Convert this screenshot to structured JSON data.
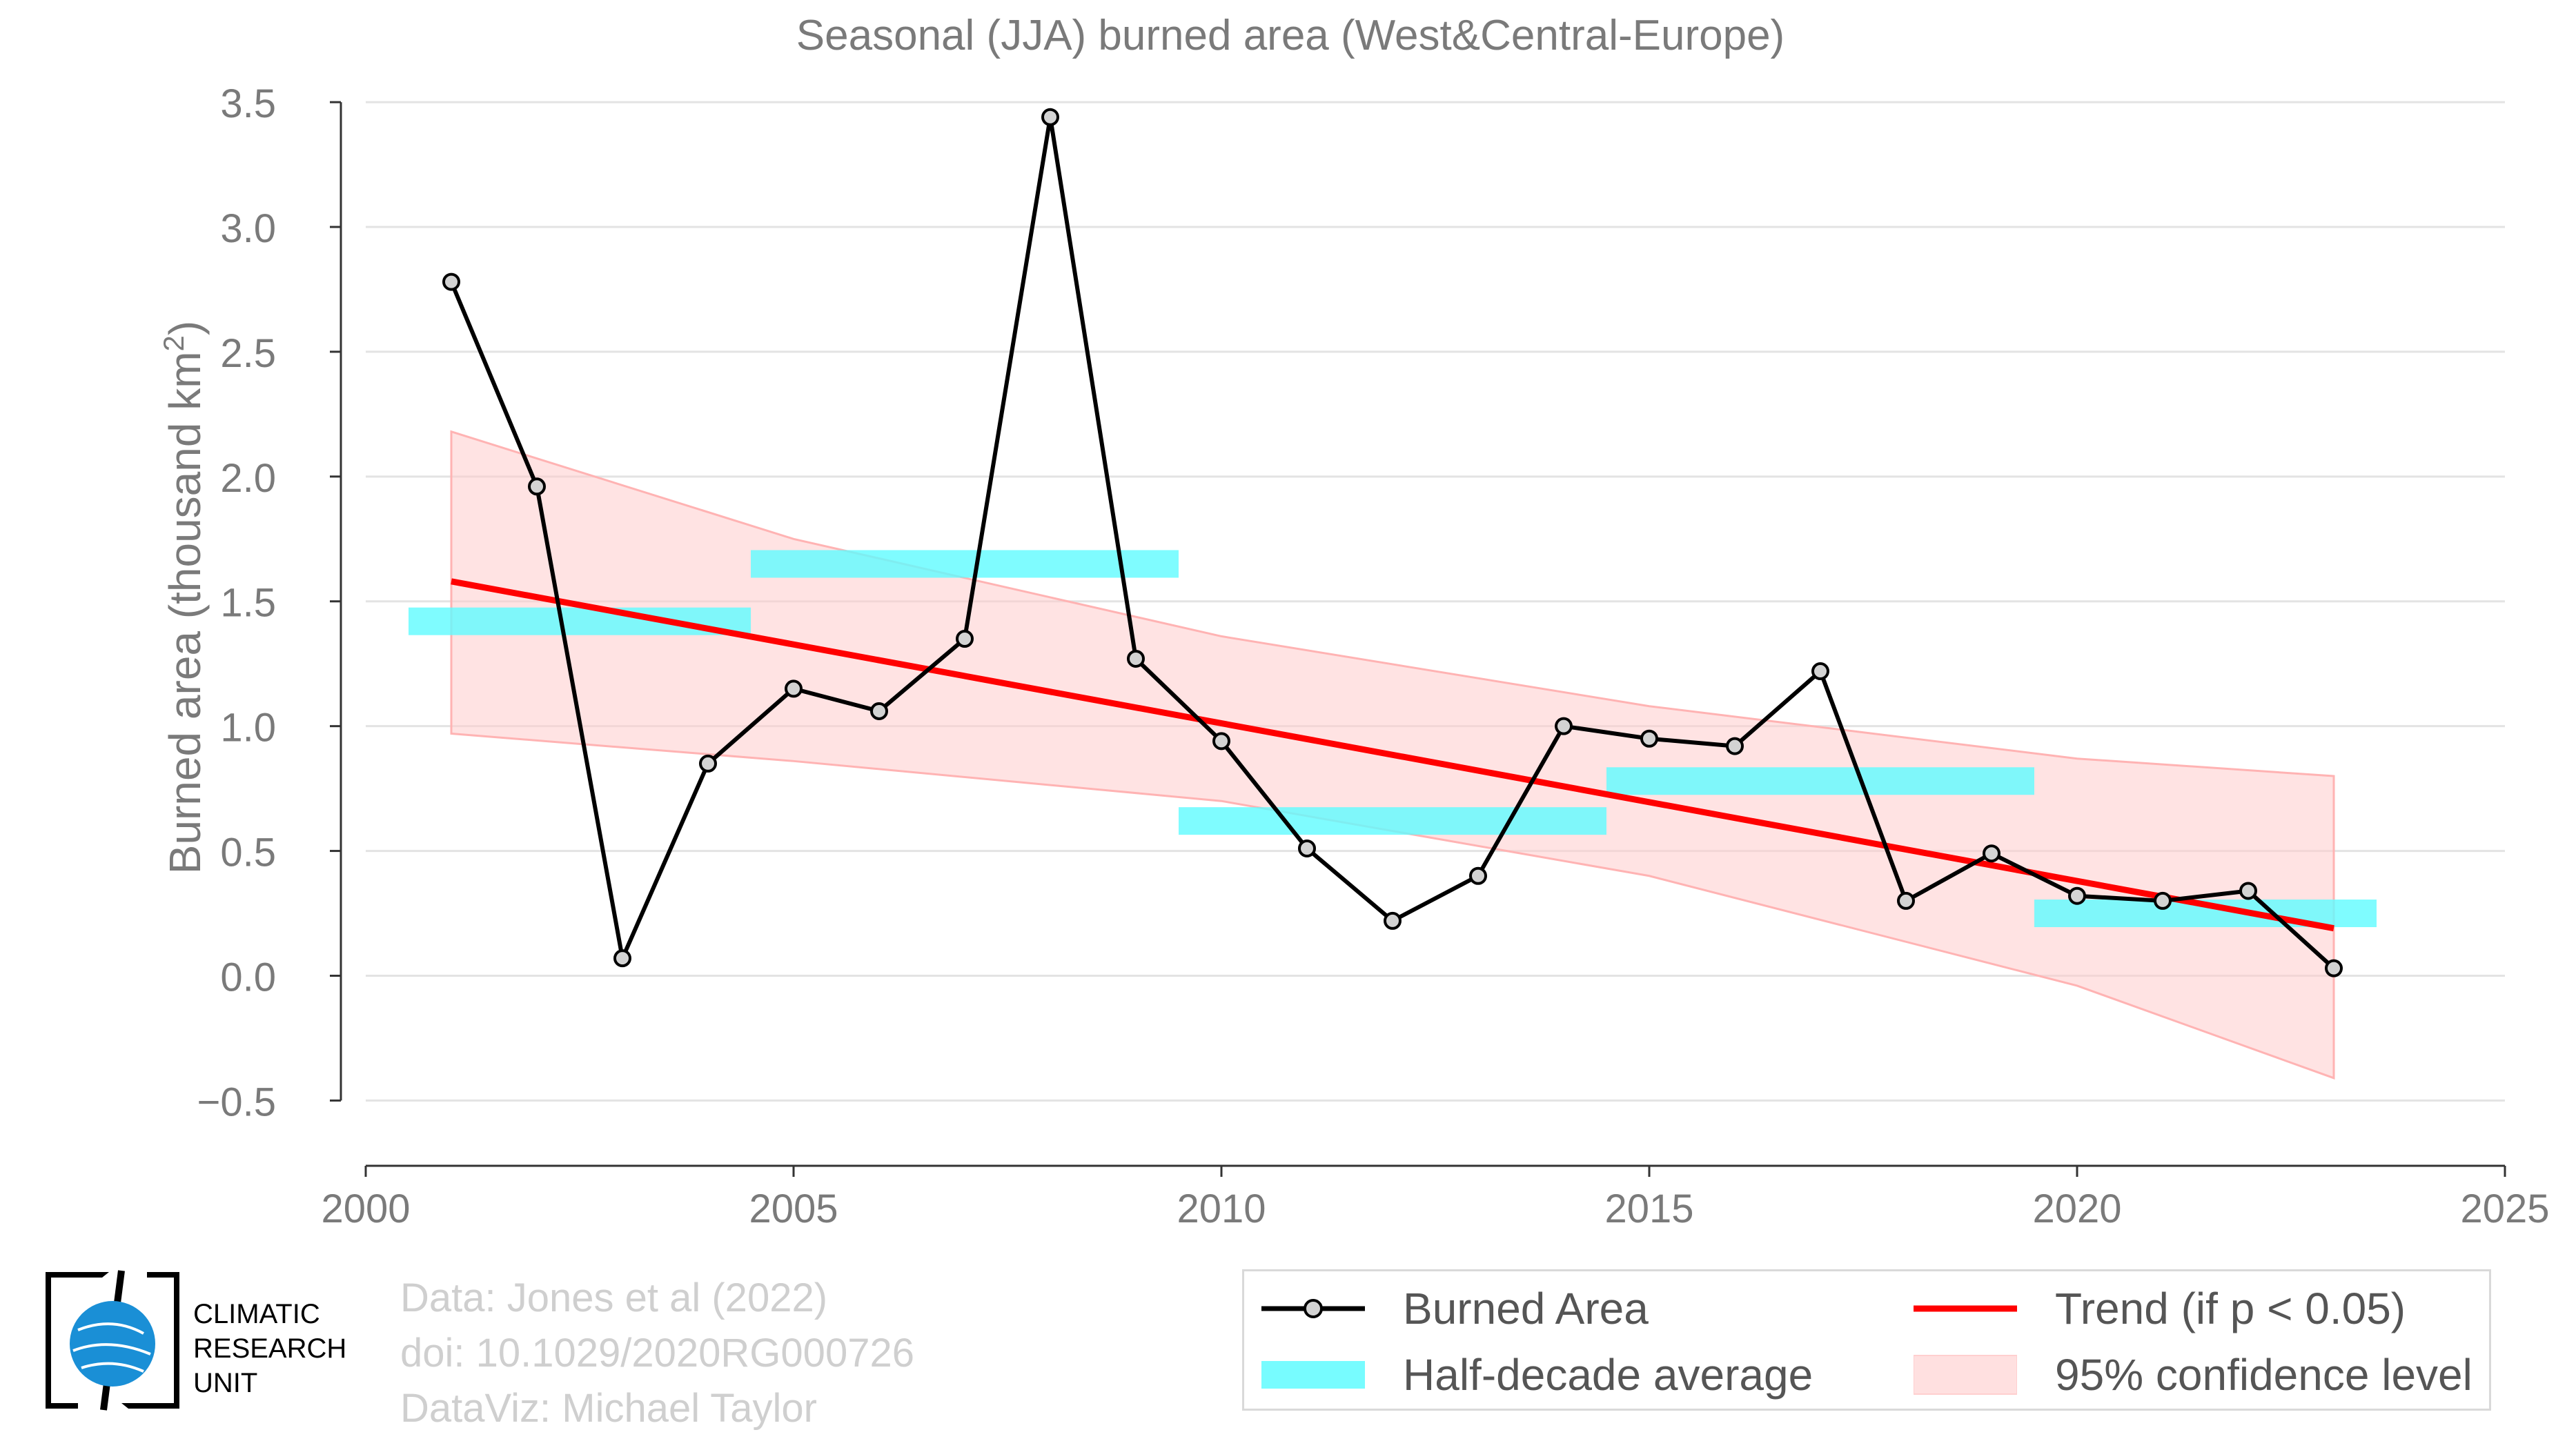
{
  "chart_data": {
    "type": "line",
    "title": "Seasonal (JJA) burned area (West&Central-Europe)",
    "ylabel_main": "Burned area (thousand km",
    "ylabel_sup": "2",
    "ylabel_end": ")",
    "xlim": [
      2000,
      2025
    ],
    "ylim": [
      -0.72,
      3.55
    ],
    "xticks": [
      2000,
      2005,
      2010,
      2015,
      2020,
      2025
    ],
    "yticks": [
      -0.5,
      0.0,
      0.5,
      1.0,
      1.5,
      2.0,
      2.5,
      3.0,
      3.5
    ],
    "ytick_labels": [
      "−0.5",
      "0.0",
      "0.5",
      "1.0",
      "1.5",
      "2.0",
      "2.5",
      "3.0",
      "3.5"
    ],
    "grid": "horizontal",
    "series": [
      {
        "name": "Burned Area",
        "color": "#000000",
        "x": [
          2001,
          2002,
          2003,
          2004,
          2005,
          2006,
          2007,
          2008,
          2009,
          2010,
          2011,
          2012,
          2013,
          2014,
          2015,
          2016,
          2017,
          2018,
          2019,
          2020,
          2021,
          2022,
          2023
        ],
        "y": [
          2.78,
          1.96,
          0.07,
          0.85,
          1.15,
          1.06,
          1.35,
          3.44,
          1.27,
          0.94,
          0.51,
          0.22,
          0.4,
          1.0,
          0.95,
          0.92,
          1.22,
          0.3,
          0.49,
          0.32,
          0.3,
          0.34,
          0.03
        ]
      }
    ],
    "half_decade_average": {
      "name": "Half-decade average",
      "color": "#5ffbff",
      "segments": [
        {
          "x0": 2000.5,
          "x1": 2004.5,
          "y": 1.42
        },
        {
          "x0": 2004.5,
          "x1": 2009.5,
          "y": 1.65
        },
        {
          "x0": 2009.5,
          "x1": 2014.5,
          "y": 0.62
        },
        {
          "x0": 2014.5,
          "x1": 2019.5,
          "y": 0.78
        },
        {
          "x0": 2019.5,
          "x1": 2023.5,
          "y": 0.25
        }
      ]
    },
    "trend": {
      "name": "Trend (if p < 0.05)",
      "color": "#ff0000",
      "x": [
        2001,
        2023
      ],
      "y": [
        1.58,
        0.19
      ]
    },
    "confidence": {
      "name": "95% confidence level",
      "color": "#ffcccc",
      "x": [
        2001,
        2005,
        2010,
        2015,
        2020,
        2023
      ],
      "upper": [
        2.18,
        1.75,
        1.36,
        1.08,
        0.87,
        0.8
      ],
      "lower": [
        0.97,
        0.86,
        0.7,
        0.4,
        -0.04,
        -0.41
      ]
    },
    "legend_position": "bottom-right, outside plot"
  },
  "credits": {
    "line1": "Data: Jones et al (2022)",
    "line2": "doi: 10.1029/2020RG000726",
    "line3": "DataViz: Michael Taylor"
  },
  "logo": {
    "line1": "CLIMATIC",
    "line2": "RESEARCH",
    "line3": "UNIT"
  },
  "legend": {
    "burned_area": "Burned Area",
    "trend": "Trend (if p < 0.05)",
    "half_decade": "Half-decade average",
    "confidence": "95% confidence level"
  }
}
